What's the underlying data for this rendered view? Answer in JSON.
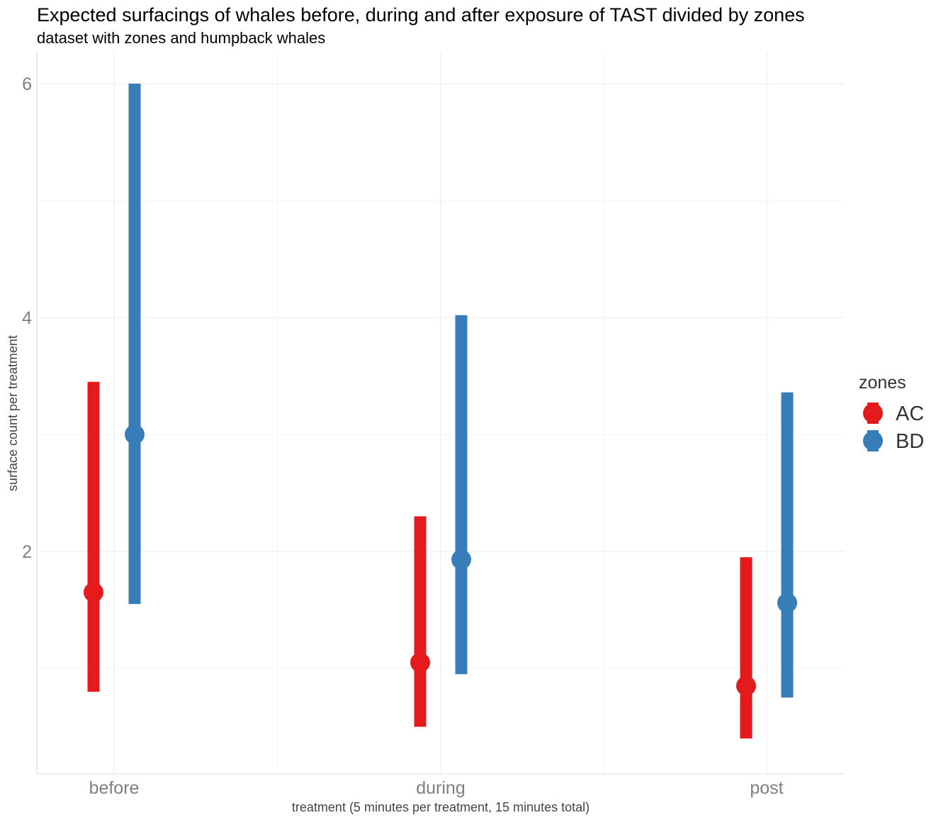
{
  "chart_data": {
    "type": "pointrange",
    "title": "Expected surfacings of whales before, during and after exposure of TAST divided by zones",
    "subtitle": "dataset with zones and humpback whales",
    "xlabel": "treatment (5 minutes per treatment, 15 minutes total)",
    "ylabel": "surface count per treatment",
    "categories": [
      "before",
      "during",
      "post"
    ],
    "ylim": [
      0.1,
      6.25
    ],
    "yticks": [
      2,
      4,
      6
    ],
    "grid": true,
    "legend": {
      "title": "zones",
      "position": "right"
    },
    "series": [
      {
        "name": "AC",
        "color": "#e41a1c",
        "estimates": [
          1.65,
          1.05,
          0.85
        ],
        "lower": [
          0.8,
          0.5,
          0.4
        ],
        "upper": [
          3.45,
          2.3,
          1.95
        ]
      },
      {
        "name": "BD",
        "color": "#377eb8",
        "estimates": [
          3.0,
          1.93,
          1.56
        ],
        "lower": [
          1.55,
          0.95,
          0.75
        ],
        "upper": [
          6.0,
          4.02,
          3.36
        ]
      }
    ]
  }
}
